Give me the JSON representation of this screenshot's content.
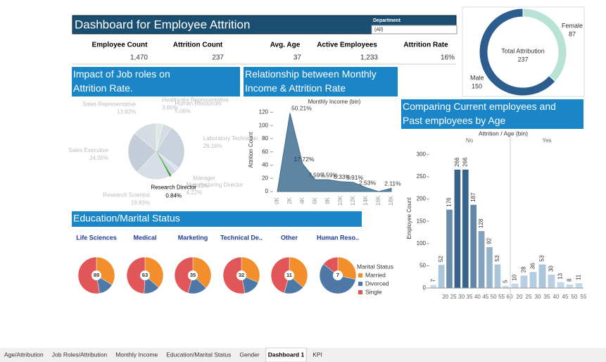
{
  "header": {
    "title": "Dashboard for Employee Attrition",
    "filter_label": "Department",
    "filter_value": "(All)"
  },
  "kpis": [
    {
      "label": "Employee Count",
      "value": "1,470"
    },
    {
      "label": "Attrition Count",
      "value": "237"
    },
    {
      "label": "Avg. Age",
      "value": "37"
    },
    {
      "label": "Active Employees",
      "value": "1,233"
    },
    {
      "label": "Attrition Rate",
      "value": "16%"
    }
  ],
  "tabs": [
    "Age/Attribution",
    "Job Roles/Attribution",
    "Monthly Income",
    "Education/Marital Status",
    "Gender",
    "Dashboard 1",
    "KPI"
  ],
  "active_tab": 5,
  "chart_data": [
    {
      "type": "donut",
      "center_label": "Total Attribution",
      "center_value": 237,
      "categories": [
        "Female",
        "Male"
      ],
      "values": [
        87,
        150
      ],
      "colors": [
        "#b8e2d6",
        "#2c5d8f"
      ]
    },
    {
      "type": "pie",
      "title": "Impact of Job roles on Attrition Rate.",
      "categories": [
        "Healthcare Representative",
        "Human Resources",
        "Laboratory Technician",
        "Manager",
        "Manufacturing Director",
        "Research Director",
        "Research Scientist",
        "Sales Executive",
        "Sales Representative"
      ],
      "values": [
        3.8,
        5.06,
        26.16,
        2.11,
        4.22,
        0.84,
        19.83,
        24.05,
        13.92
      ],
      "value_labels": [
        "3.80%",
        "5.06%",
        "26.16%",
        "2.11%",
        "4.22%",
        "0.84%",
        "19.83%",
        "24.05%",
        "13.92%"
      ],
      "colors": [
        "#dfe9e4",
        "#d3dbe4",
        "#c9d2dc",
        "#dde3ea",
        "#cfd8e1",
        "#1d2b1d",
        "#d8dee6",
        "#c4cdd8",
        "#d5dce4"
      ],
      "highlight_index": 5
    },
    {
      "type": "area",
      "title": "Relationship between Monthly Income & Attrition Rate",
      "x_label": "Monthly Income (bin)",
      "y_label": "Attrition Count",
      "categories": [
        "0K",
        "2K",
        "4K",
        "6K",
        "8K",
        "10K",
        "12K",
        "14K",
        "16K",
        "18K"
      ],
      "values": [
        0,
        119,
        42,
        18,
        18,
        15,
        14,
        6,
        0,
        5
      ],
      "annotations": [
        null,
        "50.21%",
        "17.72%",
        "7.59%",
        "7.59%",
        "6.33%",
        "5.91%",
        "2.53%",
        null,
        "2.11%"
      ],
      "color": "#5e86a3",
      "ylim": [
        0,
        130
      ],
      "yticks": [
        0,
        20,
        40,
        60,
        80,
        100,
        120
      ]
    },
    {
      "type": "bar",
      "title": "Comparing Current employees and Past employees by Age",
      "facet_label": "Attrition / Age (bin)",
      "y_label": "Employee Count",
      "ylim": [
        0,
        310
      ],
      "yticks": [
        0,
        50,
        100,
        150,
        200,
        250,
        300
      ],
      "color_range": [
        "#c8ddef",
        "#1f4e79"
      ],
      "panels": [
        {
          "name": "No",
          "categories": [
            null,
            "20",
            "25",
            "30",
            "35",
            "40",
            "45",
            "50",
            "55",
            "60"
          ],
          "values": [
            7,
            52,
            176,
            266,
            266,
            187,
            128,
            92,
            53,
            5
          ]
        },
        {
          "name": "Yes",
          "categories": [
            "20",
            "25",
            "30",
            "35",
            "40",
            "45",
            "50",
            "55"
          ],
          "values": [
            10,
            28,
            36,
            53,
            30,
            13,
            8,
            11
          ]
        }
      ]
    },
    {
      "type": "multi-pie",
      "title": "Education/Marital Status",
      "legend_title": "Marital Status",
      "categories": [
        "Life Sciences",
        "Medical",
        "Marketing",
        "Technical De..",
        "Other",
        "Human Reso.."
      ],
      "totals": [
        89,
        63,
        35,
        32,
        11,
        7
      ],
      "series": [
        {
          "name": "Married",
          "color": "#f28e2b",
          "values": [
            30,
            23,
            13,
            10,
            4,
            2
          ]
        },
        {
          "name": "Divorced",
          "color": "#4e79a7",
          "values": [
            12,
            9,
            6,
            5,
            2,
            4
          ]
        },
        {
          "name": "Single",
          "color": "#e15759",
          "values": [
            47,
            31,
            16,
            17,
            5,
            1
          ]
        }
      ]
    }
  ]
}
